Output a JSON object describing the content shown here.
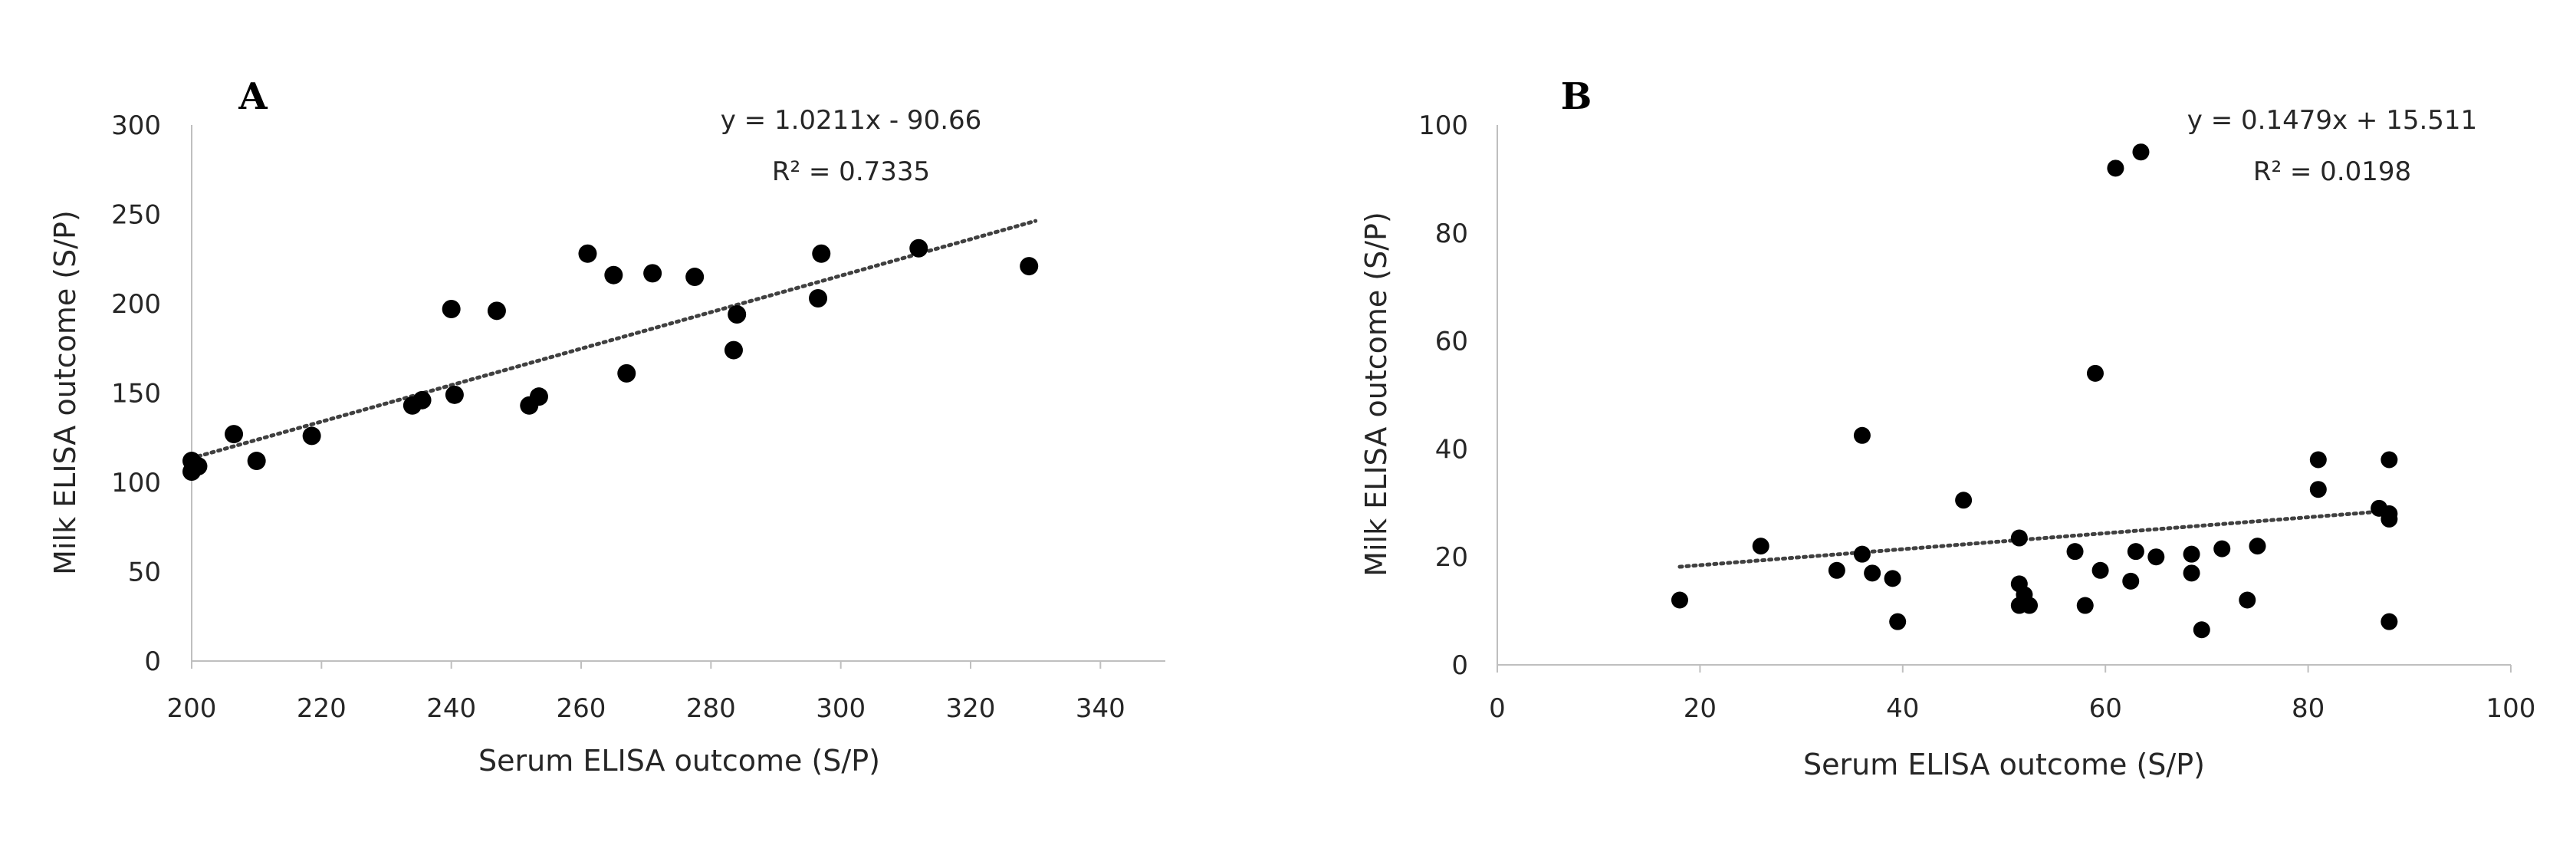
{
  "chart_data": [
    {
      "type": "scatter",
      "panel_label": "A",
      "xlabel": "Serum ELISA outcome (S/P)",
      "ylabel": "Milk ELISA outcome (S/P)",
      "xlim": [
        200,
        350
      ],
      "ylim": [
        0,
        300
      ],
      "xticks": [
        200,
        220,
        240,
        260,
        280,
        300,
        320,
        340
      ],
      "yticks": [
        0,
        50,
        100,
        150,
        200,
        250,
        300
      ],
      "grid": false,
      "marker_color": "#000000",
      "trendline_color": "#404040",
      "equation": "y = 1.0211x - 90.66",
      "r_squared": "R² = 0.7335",
      "trendline": {
        "slope": 1.0211,
        "intercept": -90.66,
        "x_range": [
          200,
          330
        ]
      },
      "points": [
        {
          "x": 200,
          "y": 106
        },
        {
          "x": 200,
          "y": 112
        },
        {
          "x": 201,
          "y": 109
        },
        {
          "x": 206.5,
          "y": 127
        },
        {
          "x": 210,
          "y": 112
        },
        {
          "x": 218.5,
          "y": 126
        },
        {
          "x": 234,
          "y": 143
        },
        {
          "x": 235.5,
          "y": 146
        },
        {
          "x": 240,
          "y": 197
        },
        {
          "x": 240.5,
          "y": 149
        },
        {
          "x": 247,
          "y": 196
        },
        {
          "x": 252,
          "y": 143
        },
        {
          "x": 253.5,
          "y": 148
        },
        {
          "x": 261,
          "y": 228
        },
        {
          "x": 265,
          "y": 216
        },
        {
          "x": 267,
          "y": 161
        },
        {
          "x": 271,
          "y": 217
        },
        {
          "x": 277.5,
          "y": 215
        },
        {
          "x": 283.5,
          "y": 174
        },
        {
          "x": 284,
          "y": 194
        },
        {
          "x": 296.5,
          "y": 203
        },
        {
          "x": 297,
          "y": 228
        },
        {
          "x": 312,
          "y": 231
        },
        {
          "x": 329,
          "y": 221
        }
      ]
    },
    {
      "type": "scatter",
      "panel_label": "B",
      "xlabel": "Serum ELISA outcome (S/P)",
      "ylabel": "Milk ELISA outcome (S/P)",
      "xlim": [
        0,
        100
      ],
      "ylim": [
        0,
        100
      ],
      "xticks": [
        0,
        20,
        40,
        60,
        80,
        100
      ],
      "yticks": [
        0,
        20,
        40,
        60,
        80,
        100
      ],
      "grid": false,
      "marker_color": "#000000",
      "trendline_color": "#404040",
      "equation": "y = 0.1479x + 15.511",
      "r_squared": "R² = 0.0198",
      "trendline": {
        "slope": 0.1479,
        "intercept": 15.511,
        "x_range": [
          18,
          88
        ]
      },
      "points": [
        {
          "x": 18,
          "y": 12
        },
        {
          "x": 26,
          "y": 22
        },
        {
          "x": 33.5,
          "y": 17.5
        },
        {
          "x": 36,
          "y": 20.5
        },
        {
          "x": 36,
          "y": 42.5
        },
        {
          "x": 37,
          "y": 17
        },
        {
          "x": 39,
          "y": 16
        },
        {
          "x": 39.5,
          "y": 8
        },
        {
          "x": 46,
          "y": 30.5
        },
        {
          "x": 51.5,
          "y": 23.5
        },
        {
          "x": 51.5,
          "y": 15
        },
        {
          "x": 51.5,
          "y": 11
        },
        {
          "x": 52,
          "y": 13
        },
        {
          "x": 52.5,
          "y": 11
        },
        {
          "x": 57,
          "y": 21
        },
        {
          "x": 58,
          "y": 11
        },
        {
          "x": 59,
          "y": 54
        },
        {
          "x": 59.5,
          "y": 17.5
        },
        {
          "x": 61,
          "y": 92
        },
        {
          "x": 62.5,
          "y": 15.5
        },
        {
          "x": 63,
          "y": 21
        },
        {
          "x": 63.5,
          "y": 95
        },
        {
          "x": 65,
          "y": 20
        },
        {
          "x": 68.5,
          "y": 20.5
        },
        {
          "x": 68.5,
          "y": 17
        },
        {
          "x": 69.5,
          "y": 6.5
        },
        {
          "x": 71.5,
          "y": 21.5
        },
        {
          "x": 74,
          "y": 12
        },
        {
          "x": 75,
          "y": 22
        },
        {
          "x": 81,
          "y": 38
        },
        {
          "x": 81,
          "y": 32.5
        },
        {
          "x": 87,
          "y": 29
        },
        {
          "x": 88,
          "y": 28
        },
        {
          "x": 88,
          "y": 27
        },
        {
          "x": 88,
          "y": 38
        },
        {
          "x": 88,
          "y": 8
        }
      ]
    }
  ]
}
